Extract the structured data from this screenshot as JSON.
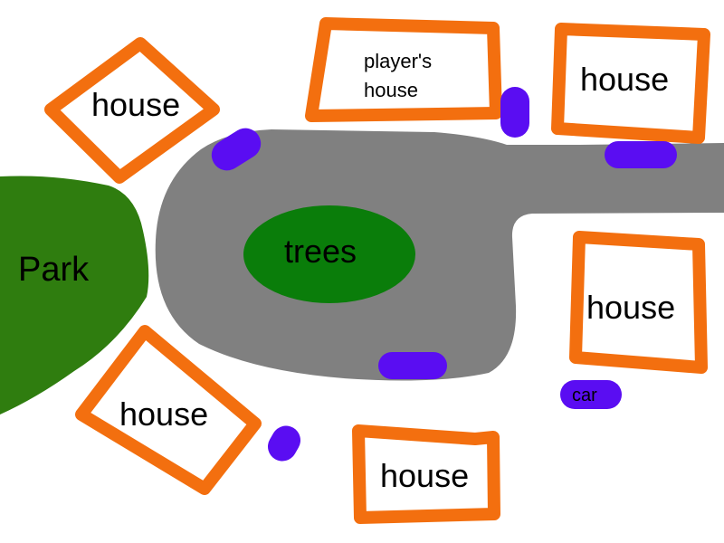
{
  "map": {
    "colors": {
      "background": "#ffffff",
      "road": "#808080",
      "house_outline": "#f36f0f",
      "park": "#2f7d0f",
      "trees": "#0a7d0a",
      "car": "#5a0df2",
      "text": "#000000"
    },
    "labels": {
      "park": "Park",
      "trees": "trees",
      "players_house_line1": "player's",
      "players_house_line2": "house",
      "house": "house",
      "car": "car"
    },
    "features": [
      {
        "kind": "park",
        "label": "Park"
      },
      {
        "kind": "trees",
        "label": "trees"
      },
      {
        "kind": "road",
        "label": ""
      },
      {
        "kind": "house",
        "label": "player's house"
      },
      {
        "kind": "house",
        "label": "house",
        "count": 5
      },
      {
        "kind": "car",
        "label": "car",
        "count": 6
      }
    ]
  }
}
